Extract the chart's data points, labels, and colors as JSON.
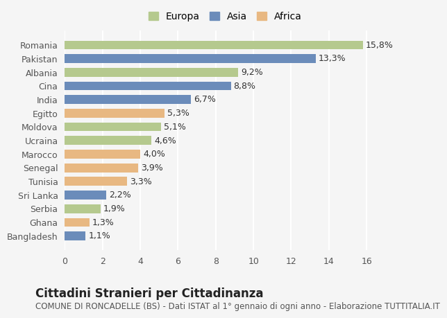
{
  "categories": [
    "Bangladesh",
    "Ghana",
    "Serbia",
    "Sri Lanka",
    "Tunisia",
    "Senegal",
    "Marocco",
    "Ucraina",
    "Moldova",
    "Egitto",
    "India",
    "Cina",
    "Albania",
    "Pakistan",
    "Romania"
  ],
  "values": [
    1.1,
    1.3,
    1.9,
    2.2,
    3.3,
    3.9,
    4.0,
    4.6,
    5.1,
    5.3,
    6.7,
    8.8,
    9.2,
    13.3,
    15.8
  ],
  "continents": [
    "Asia",
    "Africa",
    "Europa",
    "Asia",
    "Africa",
    "Africa",
    "Africa",
    "Europa",
    "Europa",
    "Africa",
    "Asia",
    "Asia",
    "Europa",
    "Asia",
    "Europa"
  ],
  "colors": {
    "Europa": "#b5c98e",
    "Asia": "#6b8cba",
    "Africa": "#e8b882"
  },
  "legend_order": [
    "Europa",
    "Asia",
    "Africa"
  ],
  "xlim": [
    0,
    17
  ],
  "xticks": [
    0,
    2,
    4,
    6,
    8,
    10,
    12,
    14,
    16
  ],
  "title": "Cittadini Stranieri per Cittadinanza",
  "subtitle": "COMUNE DI RONCADELLE (BS) - Dati ISTAT al 1° gennaio di ogni anno - Elaborazione TUTTITALIA.IT",
  "bg_color": "#f5f5f5",
  "label_fontsize": 9,
  "tick_fontsize": 9,
  "title_fontsize": 12,
  "subtitle_fontsize": 8.5
}
